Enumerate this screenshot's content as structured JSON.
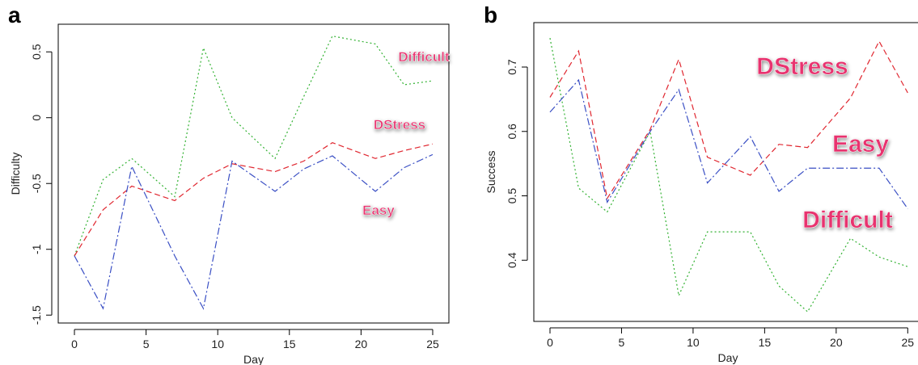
{
  "chart_data": [
    {
      "type": "line",
      "panel": "a",
      "x_label": "Day",
      "y_label": "Difficulty",
      "x": [
        0,
        2,
        4,
        7,
        9,
        11,
        14,
        16,
        18,
        21,
        23,
        25
      ],
      "series": [
        {
          "name": "Difficult",
          "color": "#33b233",
          "dash": "2,3",
          "values": [
            -1.05,
            -0.47,
            -0.31,
            -0.6,
            0.53,
            0.0,
            -0.31,
            0.16,
            0.62,
            0.56,
            0.25,
            0.28
          ]
        },
        {
          "name": "DStress",
          "color": "#e0262f",
          "dash": "7,4",
          "values": [
            -1.05,
            -0.7,
            -0.52,
            -0.63,
            -0.46,
            -0.35,
            -0.41,
            -0.33,
            -0.19,
            -0.31,
            -0.25,
            -0.2
          ]
        },
        {
          "name": "Easy",
          "color": "#3a4fc4",
          "dash": "9,3,2,3",
          "values": [
            -1.05,
            -1.45,
            -0.37,
            -1.05,
            -1.45,
            -0.33,
            -0.56,
            -0.39,
            -0.29,
            -0.56,
            -0.38,
            -0.28
          ]
        }
      ],
      "annotations": [
        "Difficult",
        "DStress",
        "Easy"
      ],
      "xlim": [
        -1.13,
        26.13
      ],
      "ylim": [
        -1.56,
        0.71
      ],
      "xticks": [
        0,
        5,
        10,
        15,
        20,
        25
      ],
      "yticks": [
        -1.5,
        -1.0,
        -0.5,
        0.0,
        0.5
      ]
    },
    {
      "type": "line",
      "panel": "b",
      "x_label": "Day",
      "y_label": "Success",
      "x": [
        0,
        2,
        4,
        7,
        9,
        11,
        14,
        16,
        18,
        21,
        23,
        25
      ],
      "series": [
        {
          "name": "Difficult",
          "color": "#33b233",
          "dash": "2,3",
          "values": [
            0.745,
            0.512,
            0.475,
            0.6,
            0.345,
            0.444,
            0.444,
            0.36,
            0.32,
            0.434,
            0.405,
            0.39
          ]
        },
        {
          "name": "DStress",
          "color": "#e0262f",
          "dash": "7,4",
          "values": [
            0.653,
            0.725,
            0.496,
            0.603,
            0.712,
            0.56,
            0.532,
            0.58,
            0.575,
            0.652,
            0.74,
            0.66
          ]
        },
        {
          "name": "Easy",
          "color": "#3a4fc4",
          "dash": "9,3,2,3",
          "values": [
            0.63,
            0.68,
            0.49,
            0.6,
            0.665,
            0.52,
            0.592,
            0.507,
            0.543,
            0.543,
            0.543,
            0.48
          ]
        }
      ],
      "annotations": [
        "DStress",
        "Easy",
        "Difficult"
      ],
      "xlim": [
        -1.13,
        26.0
      ],
      "ylim": [
        0.305,
        0.769
      ],
      "xticks": [
        0,
        5,
        10,
        15,
        20,
        25
      ],
      "yticks": [
        0.4,
        0.5,
        0.6,
        0.7
      ]
    }
  ]
}
